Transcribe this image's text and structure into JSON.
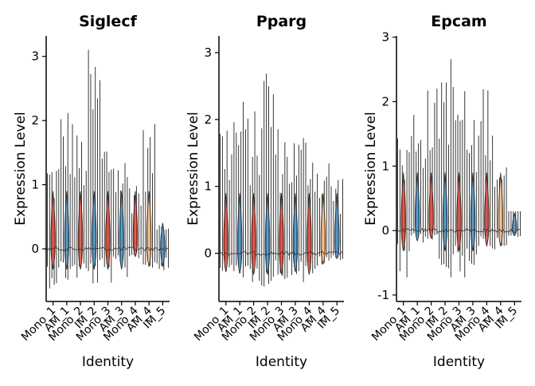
{
  "chart_data": [
    {
      "type": "violin",
      "title": "Siglecf",
      "xlabel": "Identity",
      "ylabel": "Expression Level",
      "ylim": [
        -0.82,
        3.32
      ],
      "yticks": [
        0,
        1,
        2,
        3
      ],
      "categories": [
        "Mono_1",
        "AM_1",
        "Mono_2",
        "IM_2",
        "Mono_3",
        "AM_3",
        "Mono_4",
        "AM_4",
        "IM_5"
      ],
      "colors": [
        "#d7301f",
        "#2c7fb8",
        "#d7301f",
        "#2c7fb8",
        "#d7301f",
        "#2c7fb8",
        "#d7301f",
        "#fdae61",
        "#2c7fb8"
      ],
      "values_max": [
        1.45,
        2.28,
        1.85,
        3.15,
        1.82,
        1.5,
        1.2,
        1.95,
        0.45
      ],
      "values_min": [
        -0.62,
        -0.55,
        -0.5,
        -0.6,
        -0.55,
        -0.5,
        -0.15,
        -0.35,
        -0.35
      ]
    },
    {
      "type": "violin",
      "title": "Pparg",
      "xlabel": "Identity",
      "ylabel": "Expression Level",
      "ylim": [
        -0.72,
        3.25
      ],
      "yticks": [
        0,
        1,
        2,
        3
      ],
      "categories": [
        "Mono_1",
        "AM_1",
        "Mono_2",
        "IM_2",
        "Mono_3",
        "AM_3",
        "Mono_4",
        "AM_4",
        "IM_5"
      ],
      "colors": [
        "#d7301f",
        "#2c7fb8",
        "#d7301f",
        "#2c7fb8",
        "#d7301f",
        "#2c7fb8",
        "#d7301f",
        "#fdae61",
        "#2c7fb8"
      ],
      "values_max": [
        2.1,
        2.35,
        2.15,
        3.05,
        1.95,
        1.85,
        1.9,
        1.5,
        1.25
      ],
      "values_min": [
        -0.35,
        -0.38,
        -0.45,
        -0.5,
        -0.4,
        -0.35,
        -0.5,
        -0.2,
        -0.1
      ]
    },
    {
      "type": "violin",
      "title": "Epcam",
      "xlabel": "Identity",
      "ylabel": "Expression Level",
      "ylim": [
        -1.1,
        3.02
      ],
      "yticks": [
        -1,
        0,
        1,
        2,
        3
      ],
      "categories": [
        "Mono_1",
        "AM_1",
        "Mono_2",
        "IM_2",
        "Mono_3",
        "AM_3",
        "Mono_4",
        "AM_4",
        "IM_5"
      ],
      "colors": [
        "#d7301f",
        "#2c7fb8",
        "#d7301f",
        "#2c7fb8",
        "#d7301f",
        "#2c7fb8",
        "#d7301f",
        "#fdae61",
        "#2c7fb8"
      ],
      "values_max": [
        1.5,
        2.05,
        2.25,
        2.85,
        2.4,
        1.75,
        2.4,
        1.2,
        0.3
      ],
      "values_min": [
        -0.85,
        -0.2,
        -0.15,
        -0.9,
        -0.75,
        -0.55,
        -0.3,
        -0.3,
        -0.1
      ]
    }
  ]
}
